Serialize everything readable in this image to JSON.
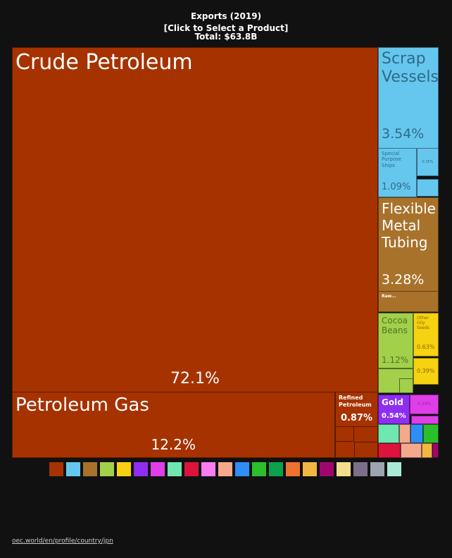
{
  "chart_data": {
    "type": "treemap",
    "title": "Exports (2019)",
    "subtitle": "[Click to Select a Product]",
    "total": "Total: $63.8B",
    "categories": [
      "Crude Petroleum",
      "Petroleum Gas",
      "Refined Petroleum",
      "Scrap Vessels",
      "Special Purpose Ships",
      null,
      "Flexible Metal Tubing",
      "Raw...",
      "Cocoa Beans",
      "Other Oily Seeds",
      null,
      "Gold",
      null
    ],
    "values": [
      72.1,
      12.2,
      0.87,
      3.54,
      1.09,
      0.35,
      3.28,
      null,
      1.12,
      0.63,
      0.39,
      0.54,
      0.33
    ],
    "value_labels": [
      "72.1%",
      "12.2%",
      "0.87%",
      "3.54%",
      "1.09%",
      "0.35%",
      "3.28%",
      null,
      "1.12%",
      "0.63%",
      "0.39%",
      "0.54%",
      "0.33%"
    ],
    "colors": [
      "#a63200",
      "#a63200",
      "#a63200",
      "#66c7ee",
      "#66c7ee",
      "#66c7ee",
      "#a9722b",
      "#a9722b",
      "#a2d04a",
      "#f6d210",
      "#f6d210",
      "#8f2ef3",
      "#e03ee8"
    ],
    "legend_colors": [
      "#a63300",
      "#66c7ee",
      "#a9722b",
      "#a2d04a",
      "#f6d210",
      "#8f2ef3",
      "#e03ee8",
      "#6ee8b0",
      "#dc143c",
      "#fb7cf1",
      "#f4a98d",
      "#2f8ef5",
      "#2bbf2b",
      "#0aa24d",
      "#f07230",
      "#f2b743",
      "#a1066f",
      "#f1df8e",
      "#7d6e8c",
      "#9da3b1",
      "#a9ead6"
    ],
    "source": "oec.world/en/profile/country/jpn"
  }
}
